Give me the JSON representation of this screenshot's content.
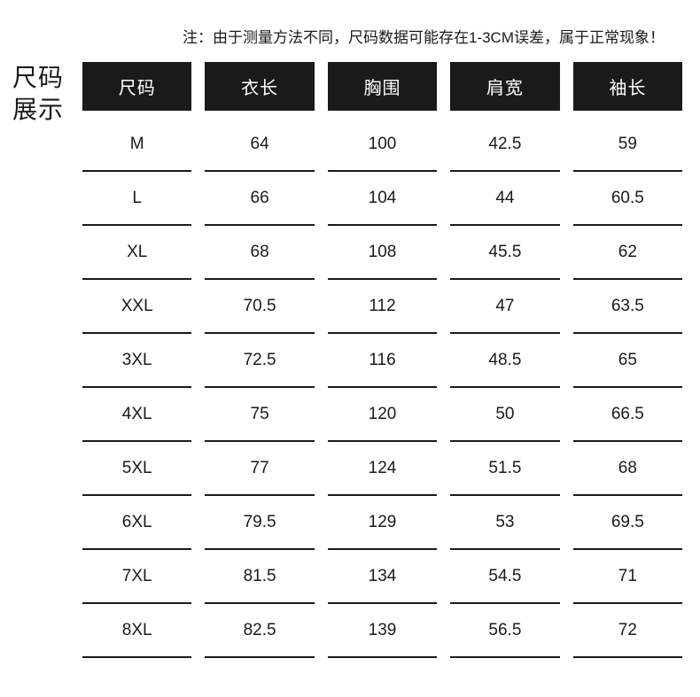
{
  "note": "注：由于测量方法不同，尺码数据可能存在1-3CM误差，属于正常现象！",
  "title": {
    "line1": "尺码",
    "line2": "展示"
  },
  "table": {
    "type": "table",
    "columns": [
      "尺码",
      "衣长",
      "胸围",
      "肩宽",
      "袖长"
    ],
    "rows": [
      [
        "M",
        "64",
        "100",
        "42.5",
        "59"
      ],
      [
        "L",
        "66",
        "104",
        "44",
        "60.5"
      ],
      [
        "XL",
        "68",
        "108",
        "45.5",
        "62"
      ],
      [
        "XXL",
        "70.5",
        "112",
        "47",
        "63.5"
      ],
      [
        "3XL",
        "72.5",
        "116",
        "48.5",
        "65"
      ],
      [
        "4XL",
        "75",
        "120",
        "50",
        "66.5"
      ],
      [
        "5XL",
        "77",
        "124",
        "51.5",
        "68"
      ],
      [
        "6XL",
        "79.5",
        "129",
        "53",
        "69.5"
      ],
      [
        "7XL",
        "81.5",
        "134",
        "54.5",
        "71"
      ],
      [
        "8XL",
        "82.5",
        "139",
        "56.5",
        "72"
      ]
    ],
    "header_bg_color": "#1a1a1a",
    "header_text_color": "#ffffff",
    "data_text_color": "#1a1a1a",
    "border_color": "#1a1a1a",
    "background_color": "#ffffff",
    "header_fontsize": 20,
    "data_fontsize": 19,
    "column_gap": 15,
    "row_border_width": 2
  }
}
